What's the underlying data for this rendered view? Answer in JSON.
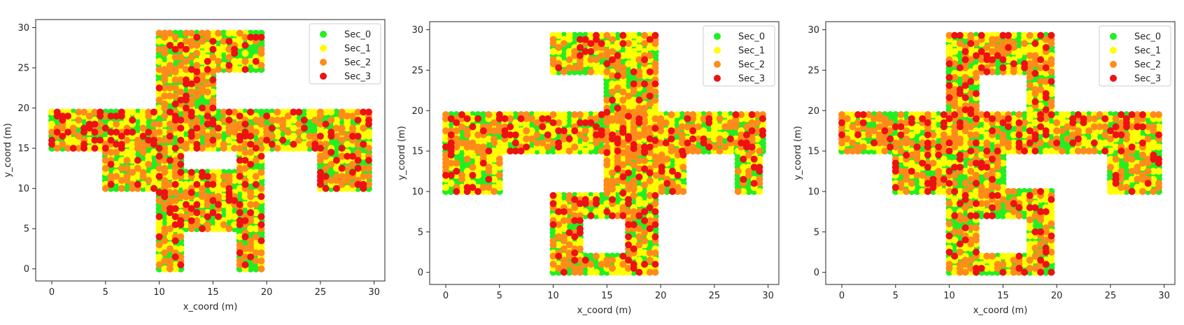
{
  "chart_data": [
    {
      "type": "scatter",
      "xlabel": "x_coord (m)",
      "ylabel": "y_coord (m)",
      "xlim": [
        -1.5,
        31
      ],
      "ylim": [
        -1.5,
        31
      ],
      "xticks": [
        0,
        5,
        10,
        15,
        20,
        25,
        30
      ],
      "yticks": [
        0,
        5,
        10,
        15,
        20,
        25,
        30
      ],
      "legend": "top-right",
      "series_names": [
        "Sec_0",
        "Sec_1",
        "Sec_2",
        "Sec_3"
      ],
      "series_colors": [
        "#22ee22",
        "#ffff00",
        "#ff8c1a",
        "#ee1111"
      ],
      "weights": [
        0.3,
        0.3,
        0.26,
        0.14
      ],
      "grid_step": 0.5,
      "seed": 17,
      "regions": [
        [
          10,
          24.8,
          19.6,
          29.6
        ],
        [
          10,
          15.0,
          15.0,
          24.8
        ],
        [
          0,
          15.0,
          29.6,
          19.6
        ],
        [
          5,
          10.0,
          12.0,
          15.0
        ],
        [
          10,
          0.0,
          12.0,
          15.0
        ],
        [
          12,
          5.0,
          17.5,
          12.0
        ],
        [
          17.5,
          0.0,
          19.6,
          15.0
        ],
        [
          25,
          10.0,
          29.6,
          15.0
        ]
      ]
    },
    {
      "type": "scatter",
      "xlabel": "x_coord (m)",
      "ylabel": "y_coord (m)",
      "xlim": [
        -1.5,
        31
      ],
      "ylim": [
        -1.5,
        31
      ],
      "xticks": [
        0,
        5,
        10,
        15,
        20,
        25,
        30
      ],
      "yticks": [
        0,
        5,
        10,
        15,
        20,
        25,
        30
      ],
      "legend": "top-right",
      "series_names": [
        "Sec_0",
        "Sec_1",
        "Sec_2",
        "Sec_3"
      ],
      "series_colors": [
        "#22ee22",
        "#ffff00",
        "#ff8c1a",
        "#ee1111"
      ],
      "weights": [
        0.3,
        0.32,
        0.26,
        0.12
      ],
      "grid_step": 0.5,
      "seed": 42,
      "regions": [
        [
          10,
          24.8,
          19.6,
          29.6
        ],
        [
          15,
          9.8,
          19.6,
          24.8
        ],
        [
          0,
          15.0,
          29.6,
          19.6
        ],
        [
          0,
          10.0,
          5.0,
          15.0
        ],
        [
          19.6,
          10.0,
          22.2,
          15.0
        ],
        [
          27.2,
          10.0,
          29.6,
          15.0
        ],
        [
          10,
          7.0,
          19.6,
          9.8
        ],
        [
          10,
          2.4,
          12.5,
          7.0
        ],
        [
          17,
          2.4,
          19.6,
          7.0
        ],
        [
          10,
          0.0,
          19.6,
          2.4
        ]
      ]
    },
    {
      "type": "scatter",
      "xlabel": "x_coord (m)",
      "ylabel": "y_coord (m)",
      "xlim": [
        -1.5,
        31
      ],
      "ylim": [
        -1.5,
        31
      ],
      "xticks": [
        0,
        5,
        10,
        15,
        20,
        25,
        30
      ],
      "yticks": [
        0,
        5,
        10,
        15,
        20,
        25,
        30
      ],
      "legend": "top-right",
      "series_names": [
        "Sec_0",
        "Sec_1",
        "Sec_2",
        "Sec_3"
      ],
      "series_colors": [
        "#22ee22",
        "#ffff00",
        "#ff8c1a",
        "#ee1111"
      ],
      "weights": [
        0.32,
        0.28,
        0.26,
        0.14
      ],
      "grid_step": 0.5,
      "seed": 7,
      "regions": [
        [
          10,
          24.8,
          19.6,
          29.6
        ],
        [
          10,
          19.6,
          12.5,
          24.8
        ],
        [
          17.5,
          19.6,
          19.6,
          24.8
        ],
        [
          0,
          15.0,
          29.6,
          19.6
        ],
        [
          5,
          10.0,
          15.0,
          15.0
        ],
        [
          25,
          10.0,
          29.6,
          15.0
        ],
        [
          10,
          7.0,
          19.6,
          10.0
        ],
        [
          10,
          2.0,
          12.5,
          7.0
        ],
        [
          17.5,
          2.0,
          19.6,
          7.0
        ],
        [
          10,
          0.0,
          19.6,
          2.0
        ]
      ]
    }
  ]
}
